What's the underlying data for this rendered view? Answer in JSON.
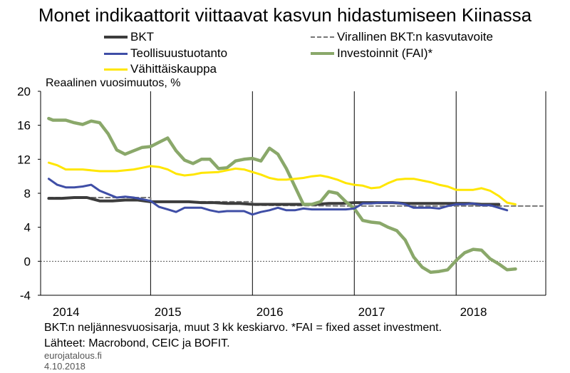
{
  "title": "Monet indikaattorit viittaavat kasvun hidastumiseen Kiinassa",
  "unit_label": "Reaalinen vuosimuutos, %",
  "footnote": "BKT:n neljännesvuosisarja, muut 3 kk keskiarvo. *FAI = fixed asset investment.",
  "sources": "Lähteet: Macrobond, CEIC ja BOFIT.",
  "site": "eurojatalous.fi",
  "date": "4.10.2018",
  "colors": {
    "bkt": "#3c3c3c",
    "target": "#777777",
    "industry": "#3f4ea6",
    "fai": "#8aa86a",
    "retail": "#ffe600"
  },
  "chart_data": {
    "type": "line",
    "x_unit": "year (decimal)",
    "xlim": [
      2013.92,
      2018.88
    ],
    "ylim": [
      -4,
      20
    ],
    "yticks": [
      -4,
      0,
      4,
      8,
      12,
      16,
      20
    ],
    "xtick_labels": [
      {
        "label": "2014",
        "x": 2014.17
      },
      {
        "label": "2015",
        "x": 2015.17
      },
      {
        "label": "2016",
        "x": 2016.17
      },
      {
        "label": "2017",
        "x": 2017.17
      },
      {
        "label": "2018",
        "x": 2018.17
      }
    ],
    "year_gridlines": [
      2015.0,
      2016.0,
      2017.0,
      2018.0
    ],
    "grid": "vertical at year boundaries",
    "legend_placement": "top",
    "series": [
      {
        "name": "BKT",
        "key": "bkt",
        "style": "solid-thick",
        "points": [
          [
            2014.0,
            7.4
          ],
          [
            2014.125,
            7.4
          ],
          [
            2014.25,
            7.5
          ],
          [
            2014.375,
            7.5
          ],
          [
            2014.5,
            7.1
          ],
          [
            2014.625,
            7.1
          ],
          [
            2014.75,
            7.2
          ],
          [
            2014.875,
            7.2
          ],
          [
            2015.0,
            7.0
          ],
          [
            2015.125,
            7.0
          ],
          [
            2015.25,
            7.0
          ],
          [
            2015.375,
            7.0
          ],
          [
            2015.5,
            6.9
          ],
          [
            2015.625,
            6.9
          ],
          [
            2015.75,
            6.8
          ],
          [
            2015.875,
            6.8
          ],
          [
            2016.0,
            6.7
          ],
          [
            2016.125,
            6.7
          ],
          [
            2016.25,
            6.7
          ],
          [
            2016.375,
            6.7
          ],
          [
            2016.5,
            6.7
          ],
          [
            2016.625,
            6.7
          ],
          [
            2016.75,
            6.8
          ],
          [
            2016.875,
            6.8
          ],
          [
            2017.0,
            6.9
          ],
          [
            2017.125,
            6.9
          ],
          [
            2017.25,
            6.9
          ],
          [
            2017.375,
            6.9
          ],
          [
            2017.5,
            6.8
          ],
          [
            2017.625,
            6.8
          ],
          [
            2017.75,
            6.8
          ],
          [
            2017.875,
            6.8
          ],
          [
            2018.0,
            6.8
          ],
          [
            2018.125,
            6.8
          ],
          [
            2018.25,
            6.7
          ],
          [
            2018.375,
            6.7
          ],
          [
            2018.42,
            6.7
          ]
        ]
      },
      {
        "name": "Virallinen BKT:n kasvutavoite",
        "key": "target",
        "style": "dashed",
        "points": [
          [
            2014.0,
            7.5
          ],
          [
            2015.0,
            7.5
          ],
          [
            2015.0,
            7.0
          ],
          [
            2016.0,
            7.0
          ],
          [
            2016.0,
            6.6
          ],
          [
            2017.0,
            6.5
          ],
          [
            2018.0,
            6.5
          ],
          [
            2018.85,
            6.5
          ]
        ]
      },
      {
        "name": "Teollisuustuotanto",
        "key": "industry",
        "style": "solid",
        "points": [
          [
            2014.0,
            9.7
          ],
          [
            2014.083,
            9.0
          ],
          [
            2014.167,
            8.7
          ],
          [
            2014.25,
            8.7
          ],
          [
            2014.333,
            8.8
          ],
          [
            2014.417,
            9.0
          ],
          [
            2014.5,
            8.3
          ],
          [
            2014.583,
            7.9
          ],
          [
            2014.667,
            7.5
          ],
          [
            2014.75,
            7.6
          ],
          [
            2014.833,
            7.5
          ],
          [
            2014.917,
            7.3
          ],
          [
            2015.0,
            7.1
          ],
          [
            2015.083,
            6.4
          ],
          [
            2015.167,
            6.1
          ],
          [
            2015.25,
            5.8
          ],
          [
            2015.333,
            6.3
          ],
          [
            2015.417,
            6.3
          ],
          [
            2015.5,
            6.3
          ],
          [
            2015.583,
            6.0
          ],
          [
            2015.667,
            5.8
          ],
          [
            2015.75,
            5.9
          ],
          [
            2015.833,
            5.9
          ],
          [
            2015.917,
            5.9
          ],
          [
            2016.0,
            5.5
          ],
          [
            2016.083,
            5.8
          ],
          [
            2016.167,
            6.0
          ],
          [
            2016.25,
            6.3
          ],
          [
            2016.333,
            6.0
          ],
          [
            2016.417,
            6.0
          ],
          [
            2016.5,
            6.2
          ],
          [
            2016.583,
            6.1
          ],
          [
            2016.667,
            6.1
          ],
          [
            2016.75,
            6.1
          ],
          [
            2016.833,
            6.1
          ],
          [
            2016.917,
            6.1
          ],
          [
            2017.0,
            6.2
          ],
          [
            2017.083,
            6.8
          ],
          [
            2017.167,
            6.8
          ],
          [
            2017.25,
            6.9
          ],
          [
            2017.333,
            6.9
          ],
          [
            2017.417,
            6.9
          ],
          [
            2017.5,
            6.7
          ],
          [
            2017.583,
            6.3
          ],
          [
            2017.667,
            6.3
          ],
          [
            2017.75,
            6.3
          ],
          [
            2017.833,
            6.2
          ],
          [
            2017.917,
            6.5
          ],
          [
            2018.0,
            6.7
          ],
          [
            2018.083,
            6.7
          ],
          [
            2018.167,
            6.8
          ],
          [
            2018.25,
            6.6
          ],
          [
            2018.333,
            6.6
          ],
          [
            2018.417,
            6.3
          ],
          [
            2018.5,
            6.0
          ]
        ]
      },
      {
        "name": "Investoinnit (FAI)*",
        "key": "fai",
        "style": "solid-thick",
        "points": [
          [
            2014.0,
            16.8
          ],
          [
            2014.042,
            16.6
          ],
          [
            2014.167,
            16.6
          ],
          [
            2014.25,
            16.3
          ],
          [
            2014.333,
            16.1
          ],
          [
            2014.417,
            16.5
          ],
          [
            2014.5,
            16.3
          ],
          [
            2014.583,
            15.0
          ],
          [
            2014.667,
            13.1
          ],
          [
            2014.75,
            12.6
          ],
          [
            2014.833,
            13.0
          ],
          [
            2014.917,
            13.4
          ],
          [
            2015.0,
            13.5
          ],
          [
            2015.083,
            14.0
          ],
          [
            2015.167,
            14.5
          ],
          [
            2015.25,
            13.0
          ],
          [
            2015.333,
            11.9
          ],
          [
            2015.417,
            11.5
          ],
          [
            2015.5,
            12.0
          ],
          [
            2015.583,
            12.0
          ],
          [
            2015.667,
            10.9
          ],
          [
            2015.75,
            11.0
          ],
          [
            2015.833,
            11.8
          ],
          [
            2015.917,
            12.0
          ],
          [
            2016.0,
            12.1
          ],
          [
            2016.083,
            11.8
          ],
          [
            2016.167,
            13.3
          ],
          [
            2016.25,
            12.6
          ],
          [
            2016.333,
            10.9
          ],
          [
            2016.417,
            8.8
          ],
          [
            2016.5,
            6.7
          ],
          [
            2016.583,
            6.7
          ],
          [
            2016.667,
            7.0
          ],
          [
            2016.75,
            8.2
          ],
          [
            2016.833,
            8.0
          ],
          [
            2016.917,
            7.0
          ],
          [
            2017.0,
            6.2
          ],
          [
            2017.083,
            4.8
          ],
          [
            2017.167,
            4.6
          ],
          [
            2017.25,
            4.5
          ],
          [
            2017.333,
            4.0
          ],
          [
            2017.417,
            3.6
          ],
          [
            2017.5,
            2.5
          ],
          [
            2017.583,
            0.5
          ],
          [
            2017.667,
            -0.7
          ],
          [
            2017.75,
            -1.3
          ],
          [
            2017.833,
            -1.2
          ],
          [
            2017.917,
            -1.0
          ],
          [
            2018.0,
            0.1
          ],
          [
            2018.083,
            1.0
          ],
          [
            2018.167,
            1.4
          ],
          [
            2018.25,
            1.3
          ],
          [
            2018.333,
            0.3
          ],
          [
            2018.417,
            -0.3
          ],
          [
            2018.5,
            -1.0
          ],
          [
            2018.583,
            -0.9
          ]
        ]
      },
      {
        "name": "Vähittäiskauppa",
        "key": "retail",
        "style": "solid",
        "points": [
          [
            2014.0,
            11.6
          ],
          [
            2014.083,
            11.3
          ],
          [
            2014.167,
            10.8
          ],
          [
            2014.333,
            10.8
          ],
          [
            2014.5,
            10.6
          ],
          [
            2014.667,
            10.6
          ],
          [
            2014.833,
            10.8
          ],
          [
            2014.917,
            11.0
          ],
          [
            2015.0,
            11.2
          ],
          [
            2015.083,
            11.1
          ],
          [
            2015.167,
            10.8
          ],
          [
            2015.25,
            10.3
          ],
          [
            2015.333,
            10.1
          ],
          [
            2015.417,
            10.2
          ],
          [
            2015.5,
            10.4
          ],
          [
            2015.667,
            10.5
          ],
          [
            2015.75,
            10.7
          ],
          [
            2015.833,
            10.9
          ],
          [
            2015.917,
            10.8
          ],
          [
            2016.0,
            10.5
          ],
          [
            2016.083,
            10.2
          ],
          [
            2016.167,
            9.8
          ],
          [
            2016.25,
            9.6
          ],
          [
            2016.333,
            9.6
          ],
          [
            2016.417,
            9.7
          ],
          [
            2016.5,
            9.8
          ],
          [
            2016.583,
            10.0
          ],
          [
            2016.667,
            10.1
          ],
          [
            2016.75,
            9.9
          ],
          [
            2016.833,
            9.6
          ],
          [
            2016.917,
            9.2
          ],
          [
            2017.0,
            9.0
          ],
          [
            2017.083,
            8.9
          ],
          [
            2017.167,
            8.6
          ],
          [
            2017.25,
            8.7
          ],
          [
            2017.333,
            9.2
          ],
          [
            2017.417,
            9.6
          ],
          [
            2017.5,
            9.7
          ],
          [
            2017.583,
            9.7
          ],
          [
            2017.667,
            9.5
          ],
          [
            2017.75,
            9.3
          ],
          [
            2017.833,
            9.0
          ],
          [
            2017.917,
            8.8
          ],
          [
            2018.0,
            8.4
          ],
          [
            2018.083,
            8.4
          ],
          [
            2018.167,
            8.4
          ],
          [
            2018.25,
            8.6
          ],
          [
            2018.333,
            8.3
          ],
          [
            2018.417,
            7.7
          ],
          [
            2018.5,
            6.9
          ],
          [
            2018.583,
            6.7
          ]
        ]
      }
    ]
  }
}
